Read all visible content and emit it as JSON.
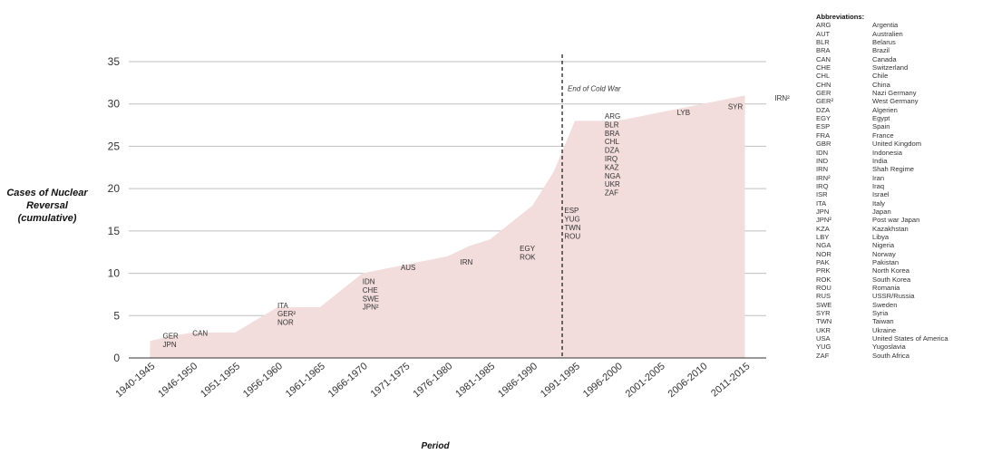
{
  "chart_data": {
    "type": "area",
    "title": "",
    "xlabel": "Period",
    "ylabel_lines": [
      "Cases of Nuclear",
      "Reversal",
      "(cumulative)"
    ],
    "ylim": [
      0,
      35
    ],
    "yticks": [
      0,
      5,
      10,
      15,
      20,
      25,
      30,
      35
    ],
    "grid": true,
    "fill_color": "#f2dcdc",
    "gridline_color": "#bfbfbf",
    "categories": [
      "1940-1945",
      "1946-1950",
      "1951-1955",
      "1956-1960",
      "1961-1965",
      "1966-1970",
      "1971-1975",
      "1976-1980",
      "1981-1985",
      "1986-1990",
      "1991-1995",
      "1996-2000",
      "2001-2005",
      "2006-2010",
      "2011-2015"
    ],
    "x": [
      0,
      0.5,
      1,
      1.5,
      2,
      2.5,
      3,
      3.5,
      4,
      4.5,
      5,
      5.5,
      6,
      6.5,
      7,
      7.5,
      8,
      8.5,
      9,
      9.5,
      10,
      10.5,
      11,
      11.5,
      12,
      12.5,
      13,
      13.5,
      14
    ],
    "values": [
      2,
      2.6,
      3,
      3,
      3,
      4.5,
      6,
      6,
      6,
      8,
      10,
      10.5,
      11,
      11.5,
      12,
      13.2,
      14,
      16,
      18,
      22,
      28,
      28,
      28,
      28.5,
      29,
      29.5,
      30,
      30.5,
      31
    ],
    "annotation_line": {
      "x": 9.7,
      "label": "End of Cold War"
    },
    "annotations": [
      {
        "x": 0.3,
        "y": 1.3,
        "lines": [
          "GER",
          "JPN"
        ]
      },
      {
        "x": 1.0,
        "y": 2.6,
        "lines": [
          "CAN"
        ]
      },
      {
        "x": 3.0,
        "y": 3.9,
        "lines": [
          "ITA",
          "GER²",
          "NOR"
        ]
      },
      {
        "x": 5.0,
        "y": 5.7,
        "lines": [
          "IDN",
          "CHE",
          "SWE",
          "JPN²"
        ]
      },
      {
        "x": 5.9,
        "y": 10.4,
        "lines": [
          "AUS"
        ]
      },
      {
        "x": 7.3,
        "y": 11.0,
        "lines": [
          "IRN"
        ]
      },
      {
        "x": 8.7,
        "y": 11.6,
        "lines": [
          "EGY",
          "ROK"
        ]
      },
      {
        "x": 9.75,
        "y": 14.1,
        "lines": [
          "ESP",
          "YUG",
          "TWN",
          "ROU"
        ]
      },
      {
        "x": 10.7,
        "y": 19.2,
        "lines": [
          "ARG",
          "BLR",
          "BRA",
          "CHL",
          "DZA",
          "IRQ",
          "KAZ",
          "NGA",
          "UKR",
          "ZAF"
        ]
      },
      {
        "x": 12.4,
        "y": 28.7,
        "lines": [
          "LYB"
        ]
      },
      {
        "x": 13.6,
        "y": 29.4,
        "lines": [
          "SYR"
        ]
      },
      {
        "x": 14.7,
        "y": 30.4,
        "lines": [
          "IRN²"
        ]
      }
    ]
  },
  "abbreviations": {
    "title": "Abbreviations:",
    "items": [
      {
        "code": "ARG",
        "name": "Argentia"
      },
      {
        "code": "AUT",
        "name": "Australien"
      },
      {
        "code": "BLR",
        "name": "Belarus"
      },
      {
        "code": "BRA",
        "name": "Brazil"
      },
      {
        "code": "CAN",
        "name": "Canada"
      },
      {
        "code": "CHE",
        "name": "Switzerland"
      },
      {
        "code": "CHL",
        "name": "Chile"
      },
      {
        "code": "CHN",
        "name": "China"
      },
      {
        "code": "GER",
        "name": "Nazi Germany"
      },
      {
        "code": "GER²",
        "name": "West Germany"
      },
      {
        "code": "DZA",
        "name": "Algerien"
      },
      {
        "code": "EGY",
        "name": "Egypt"
      },
      {
        "code": "ESP",
        "name": "Spain"
      },
      {
        "code": "FRA",
        "name": "France"
      },
      {
        "code": "GBR",
        "name": "United Kingdom"
      },
      {
        "code": "IDN",
        "name": "Indonesia"
      },
      {
        "code": "IND",
        "name": "India"
      },
      {
        "code": "IRN",
        "name": "Shah Regime"
      },
      {
        "code": "IRN²",
        "name": "Iran"
      },
      {
        "code": "IRQ",
        "name": "Iraq"
      },
      {
        "code": "ISR",
        "name": "Israel"
      },
      {
        "code": "ITA",
        "name": "Italy"
      },
      {
        "code": "JPN",
        "name": "Japan"
      },
      {
        "code": "JPN²",
        "name": "Post war Japan"
      },
      {
        "code": "KZA",
        "name": "Kazakhstan"
      },
      {
        "code": "LBY",
        "name": "Libya"
      },
      {
        "code": "NGA",
        "name": "Nigeria"
      },
      {
        "code": "NOR",
        "name": "Norway"
      },
      {
        "code": "PAK",
        "name": "Pakistan"
      },
      {
        "code": "PRK",
        "name": "North Korea"
      },
      {
        "code": "ROK",
        "name": "South Korea"
      },
      {
        "code": "ROU",
        "name": "Romania"
      },
      {
        "code": "RUS",
        "name": "USSR/Russia"
      },
      {
        "code": "SWE",
        "name": "Sweden"
      },
      {
        "code": "SYR",
        "name": "Syria"
      },
      {
        "code": "TWN",
        "name": "Taiwan"
      },
      {
        "code": "UKR",
        "name": "Ukraine"
      },
      {
        "code": "USA",
        "name": "United States of America"
      },
      {
        "code": "YUG",
        "name": "Yugoslavia"
      },
      {
        "code": "ZAF",
        "name": "South Africa"
      }
    ]
  }
}
